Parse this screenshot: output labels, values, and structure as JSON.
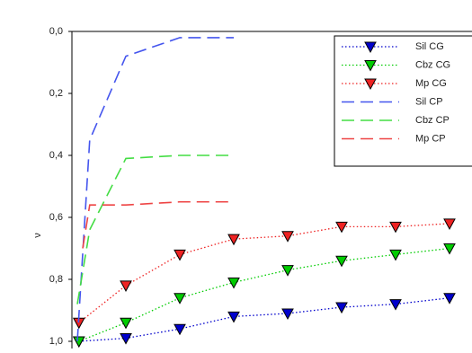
{
  "chart_data": {
    "type": "line",
    "ylabel": "ν",
    "inverted_y": true,
    "xlim": [
      0,
      7.4
    ],
    "ylim": [
      0,
      1
    ],
    "yticks": [
      {
        "value": 0,
        "label": "0,0"
      },
      {
        "value": 0.2,
        "label": "0,2"
      },
      {
        "value": 0.4,
        "label": "0,4"
      },
      {
        "value": 0.6,
        "label": "0,6"
      },
      {
        "value": 0.8,
        "label": "0,8"
      },
      {
        "value": 1,
        "label": "1,0"
      }
    ],
    "legend": "upper right",
    "series": [
      {
        "name": "Sil CG",
        "color": "#0000cc",
        "style": "dotted",
        "marker": true,
        "x": [
          0.13,
          1,
          2,
          3,
          4,
          5,
          6,
          7
        ],
        "values": [
          1.0,
          0.99,
          0.96,
          0.92,
          0.91,
          0.89,
          0.88,
          0.86
        ]
      },
      {
        "name": "Cbz CG",
        "color": "#00cc00",
        "style": "dotted",
        "marker": true,
        "x": [
          0.13,
          1,
          2,
          3,
          4,
          5,
          6,
          7
        ],
        "values": [
          1.0,
          0.94,
          0.86,
          0.81,
          0.77,
          0.74,
          0.72,
          0.7
        ]
      },
      {
        "name": "Mp CG",
        "color": "#ee2222",
        "style": "dotted",
        "marker": true,
        "x": [
          0.13,
          1,
          2,
          3,
          4,
          5,
          6,
          7
        ],
        "values": [
          0.94,
          0.82,
          0.72,
          0.67,
          0.66,
          0.63,
          0.63,
          0.62
        ]
      },
      {
        "name": "Sil CP",
        "color": "#4455ee",
        "style": "dashed",
        "marker": false,
        "x": [
          0.1,
          0.33,
          1,
          2,
          3
        ],
        "values": [
          1.0,
          0.35,
          0.08,
          0.02,
          0.02
        ]
      },
      {
        "name": "Cbz CP",
        "color": "#44dd44",
        "style": "dashed",
        "marker": false,
        "x": [
          0.1,
          0.33,
          1,
          2,
          3
        ],
        "values": [
          0.88,
          0.64,
          0.41,
          0.4,
          0.4
        ]
      },
      {
        "name": "Mp CP",
        "color": "#ee4444",
        "style": "dashed",
        "marker": false,
        "x": [
          0.2,
          0.33,
          1,
          2,
          3
        ],
        "values": [
          0.7,
          0.56,
          0.56,
          0.55,
          0.55
        ]
      }
    ]
  }
}
